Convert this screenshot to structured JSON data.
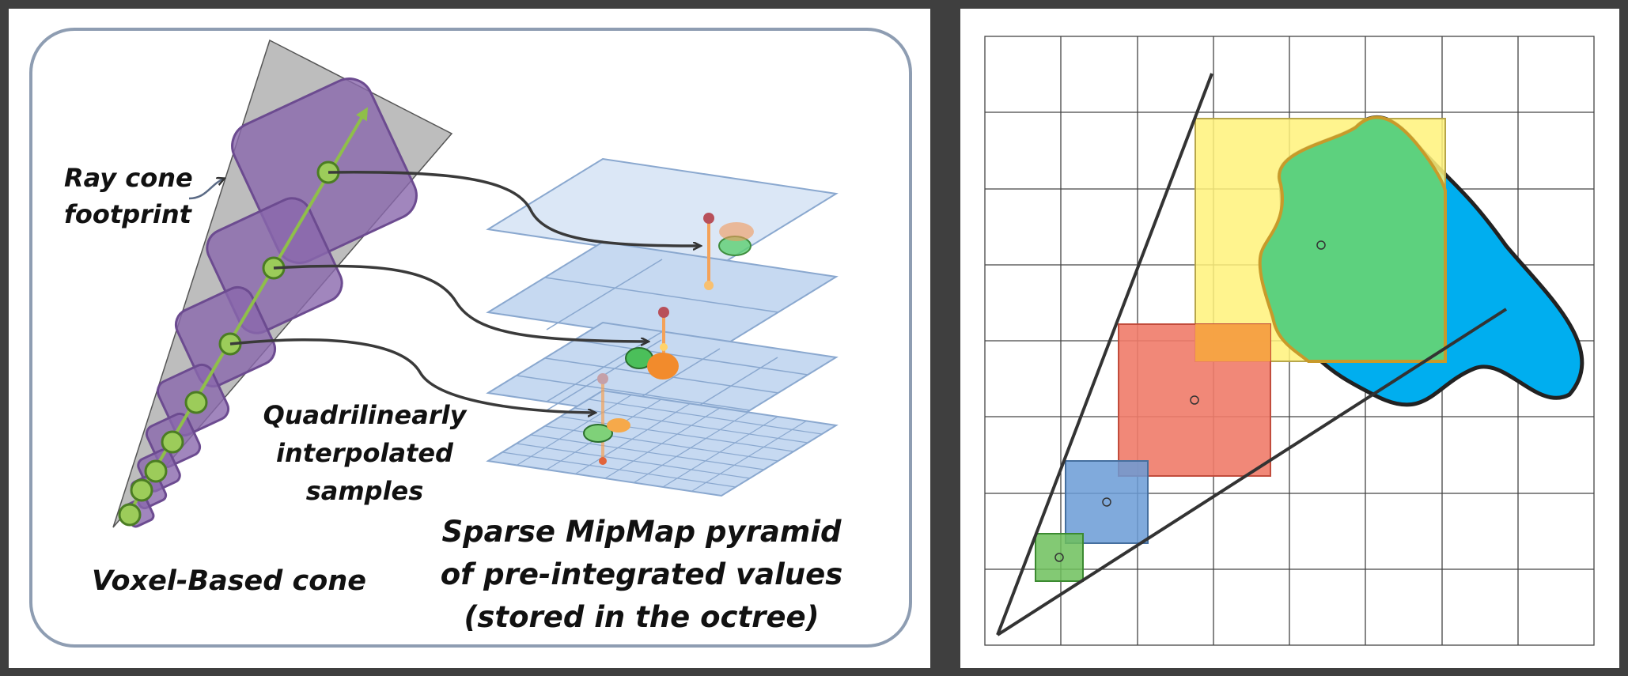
{
  "left": {
    "label_ray_cone_line1": "Ray cone",
    "label_ray_cone_line2": "footprint",
    "label_samples_line1": "Quadrilinearly",
    "label_samples_line2": "interpolated",
    "label_samples_line3": "samples",
    "label_voxel_cone": "Voxel-Based cone",
    "label_pyramid_line1": "Sparse MipMap pyramid",
    "label_pyramid_line2": "of pre-integrated values",
    "label_pyramid_line3": "(stored in the octree)"
  },
  "colors": {
    "background": "#3f3f3f",
    "cone": "#bdbdbd",
    "voxel": "#8a68ad",
    "sample": "#8fbf4a",
    "plane": "#c6d9f1",
    "yellow": "#fff27a",
    "green": "#5dd17e",
    "blue": "#00aeef",
    "red": "#f07b69",
    "steel": "#6a9bd6",
    "small_green": "#6dc05c"
  }
}
